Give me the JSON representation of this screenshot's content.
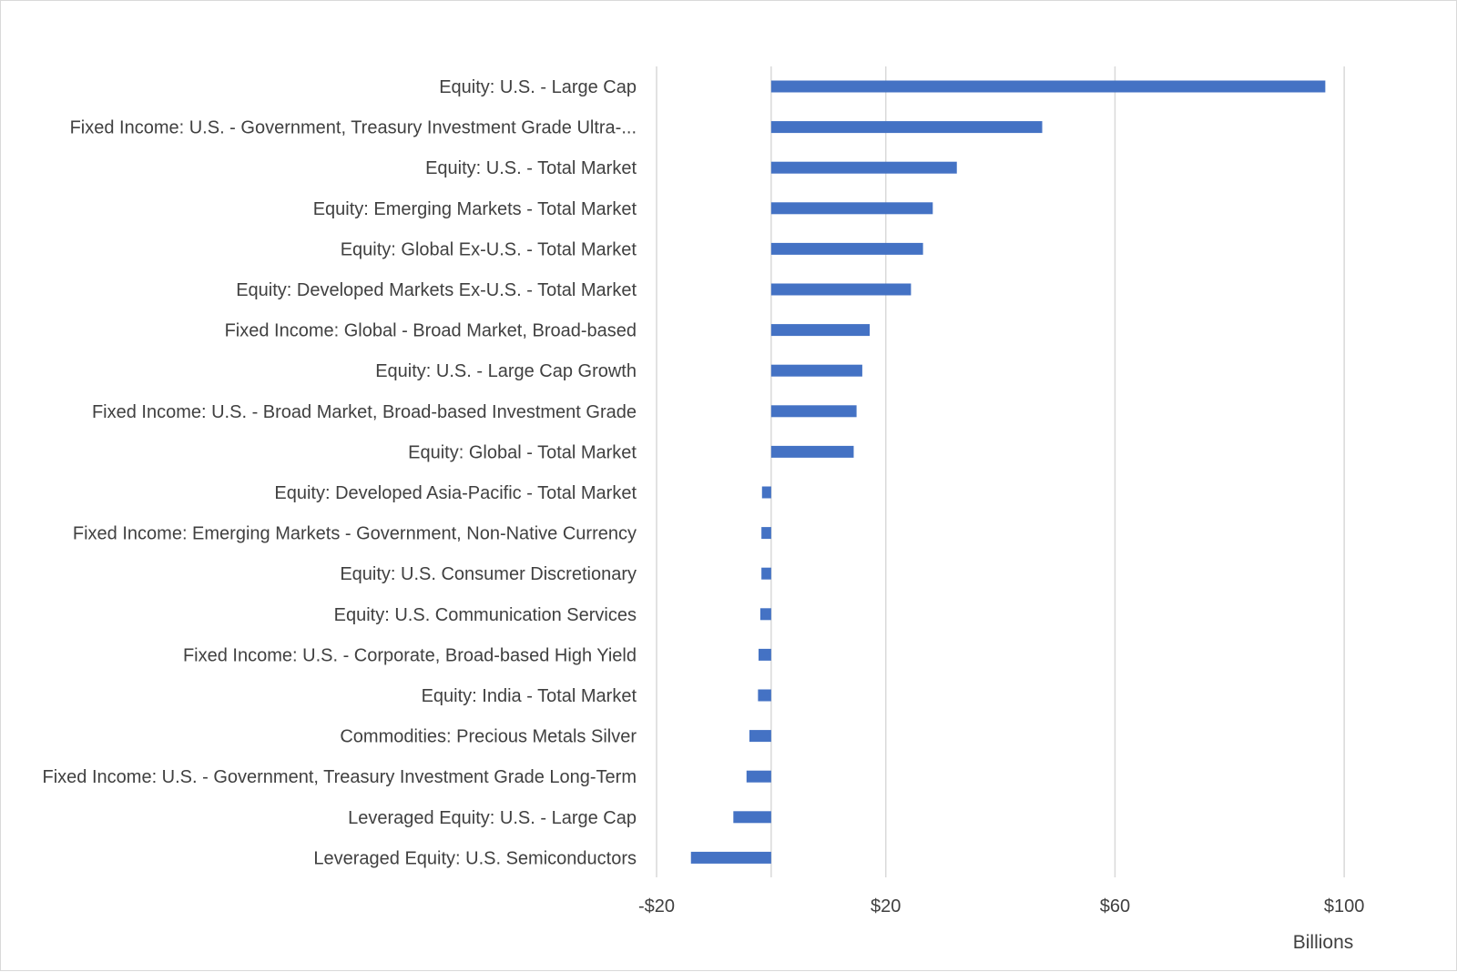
{
  "chart_data": {
    "type": "bar",
    "orientation": "horizontal",
    "title": "",
    "xlabel": "Billions",
    "ylabel": "",
    "xlim": [
      -20,
      120
    ],
    "x_ticks": [
      -20,
      20,
      60,
      100
    ],
    "x_tick_labels": [
      "-$20",
      "$20",
      "$60",
      "$100"
    ],
    "gridlines": [
      -20,
      0,
      20,
      60,
      100
    ],
    "grid": true,
    "legend": "none",
    "bar_color": "#4472c4",
    "categories": [
      "Equity: U.S. - Large Cap",
      "Fixed Income: U.S. - Government, Treasury Investment Grade Ultra-...",
      "Equity: U.S. - Total Market",
      "Equity: Emerging Markets - Total Market",
      "Equity: Global Ex-U.S. - Total Market",
      "Equity: Developed Markets Ex-U.S. - Total Market",
      "Fixed Income: Global - Broad Market, Broad-based",
      "Equity: U.S. - Large Cap Growth",
      "Fixed Income: U.S. - Broad Market, Broad-based Investment Grade",
      "Equity: Global - Total Market",
      "Equity: Developed Asia-Pacific - Total Market",
      "Fixed Income: Emerging Markets - Government, Non-Native Currency",
      "Equity: U.S. Consumer Discretionary",
      "Equity: U.S. Communication Services",
      "Fixed Income: U.S. - Corporate, Broad-based High Yield",
      "Equity: India - Total Market",
      "Commodities: Precious Metals Silver",
      "Fixed Income: U.S. - Government, Treasury Investment Grade Long-Term",
      "Leveraged Equity: U.S. - Large Cap",
      "Leveraged Equity: U.S. Semiconductors"
    ],
    "values": [
      96.7,
      47.3,
      32.4,
      28.2,
      26.5,
      24.4,
      17.2,
      15.9,
      14.9,
      14.4,
      -1.6,
      -1.7,
      -1.7,
      -1.9,
      -2.2,
      -2.3,
      -3.8,
      -4.3,
      -6.6,
      -14.0
    ]
  }
}
